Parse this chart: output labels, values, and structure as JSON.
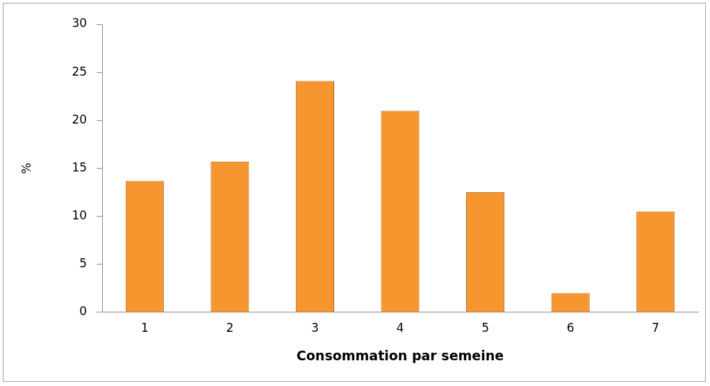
{
  "chart_data": {
    "type": "bar",
    "xlabel": "Consommation par semeine",
    "ylabel": "%",
    "categories": [
      "1",
      "2",
      "3",
      "4",
      "5",
      "6",
      "7"
    ],
    "values": [
      13.7,
      15.7,
      24.1,
      21,
      12.5,
      2,
      10.5
    ],
    "color": "#f7962f",
    "ylim": [
      0,
      30
    ],
    "yticks": [
      0,
      5,
      10,
      15,
      20,
      25,
      30
    ],
    "grid": false,
    "legend": false
  }
}
